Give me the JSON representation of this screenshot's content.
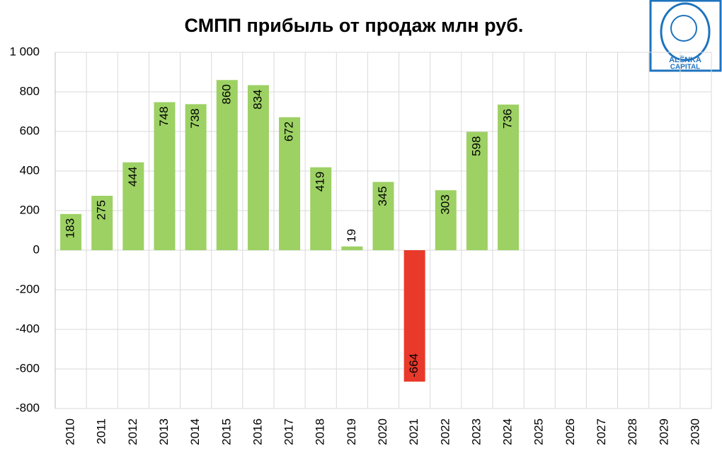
{
  "chart_data": {
    "type": "bar",
    "title": "СМПП прибыль от продаж млн руб.",
    "categories": [
      "2010",
      "2011",
      "2012",
      "2013",
      "2014",
      "2015",
      "2016",
      "2017",
      "2018",
      "2019",
      "2020",
      "2021",
      "2022",
      "2023",
      "2024",
      "2025",
      "2026",
      "2027",
      "2028",
      "2029",
      "2030"
    ],
    "values": [
      183,
      275,
      444,
      748,
      738,
      860,
      834,
      672,
      419,
      19,
      345,
      -664,
      303,
      598,
      736,
      null,
      null,
      null,
      null,
      null,
      null
    ],
    "color": "#9dd164",
    "negative_color": "#e8392a",
    "ylim": [
      -800,
      1000
    ],
    "yticks": [
      -800,
      -600,
      -400,
      -200,
      0,
      200,
      400,
      600,
      800,
      {
        "value": 1000,
        "label": "1 000"
      }
    ],
    "grid": true
  },
  "logo": {
    "line1": "ALЁNKA",
    "line2": "CAPITAL"
  }
}
